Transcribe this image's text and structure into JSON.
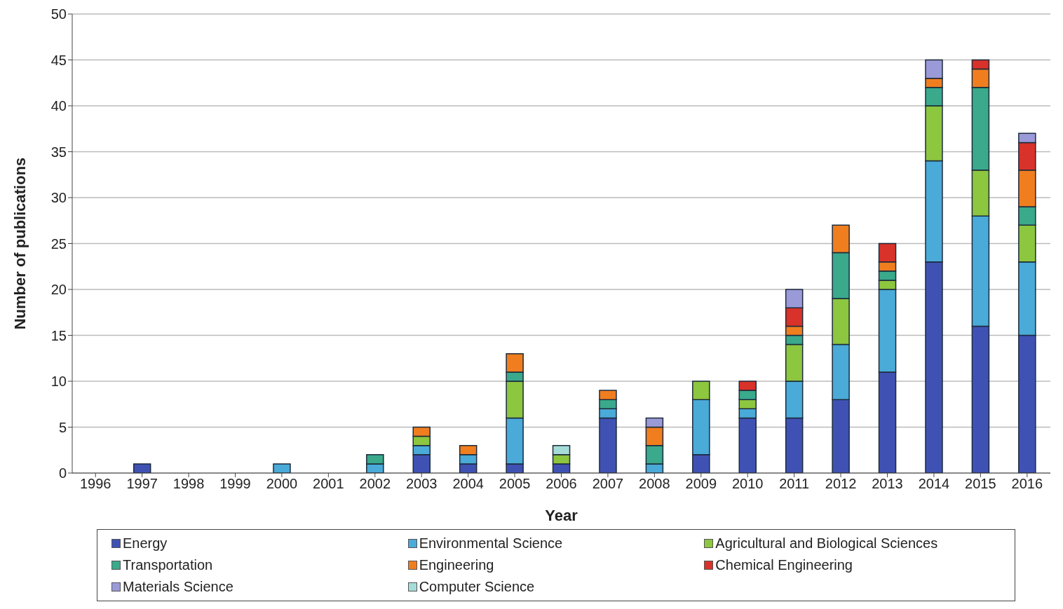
{
  "chart_data": {
    "type": "bar",
    "stacked": true,
    "xlabel": "Year",
    "ylabel": "Number of publications",
    "categories": [
      "1996",
      "1997",
      "1998",
      "1999",
      "2000",
      "2001",
      "2002",
      "2003",
      "2004",
      "2005",
      "2006",
      "2007",
      "2008",
      "2009",
      "2010",
      "2011",
      "2012",
      "2013",
      "2014",
      "2015",
      "2016"
    ],
    "series": [
      {
        "name": "Energy",
        "color": "#3f52b4",
        "values": [
          0,
          1,
          0,
          0,
          0,
          0,
          0,
          2,
          1,
          1,
          1,
          6,
          0,
          2,
          6,
          6,
          8,
          11,
          23,
          16,
          15
        ]
      },
      {
        "name": "Environmental Science",
        "color": "#4aaad8",
        "values": [
          0,
          0,
          0,
          0,
          1,
          0,
          1,
          1,
          1,
          5,
          0,
          1,
          1,
          6,
          1,
          4,
          6,
          9,
          11,
          12,
          8
        ]
      },
      {
        "name": "Agricultural and Biological Sciences",
        "color": "#8dc63f",
        "values": [
          0,
          0,
          0,
          0,
          0,
          0,
          0,
          1,
          0,
          4,
          1,
          0,
          0,
          2,
          1,
          4,
          5,
          1,
          6,
          5,
          4
        ]
      },
      {
        "name": "Transportation",
        "color": "#3aa98c",
        "values": [
          0,
          0,
          0,
          0,
          0,
          0,
          1,
          0,
          0,
          1,
          0,
          1,
          2,
          0,
          1,
          1,
          5,
          1,
          2,
          9,
          2
        ]
      },
      {
        "name": "Engineering",
        "color": "#f07e1f",
        "values": [
          0,
          0,
          0,
          0,
          0,
          0,
          0,
          1,
          1,
          2,
          0,
          1,
          2,
          0,
          0,
          1,
          3,
          1,
          1,
          2,
          4
        ]
      },
      {
        "name": "Chemical Engineering",
        "color": "#d9322a",
        "values": [
          0,
          0,
          0,
          0,
          0,
          0,
          0,
          0,
          0,
          0,
          0,
          0,
          0,
          0,
          1,
          2,
          0,
          2,
          0,
          1,
          3
        ]
      },
      {
        "name": "Materials Science",
        "color": "#9b9ad8",
        "values": [
          0,
          0,
          0,
          0,
          0,
          0,
          0,
          0,
          0,
          0,
          0,
          0,
          1,
          0,
          0,
          2,
          0,
          0,
          2,
          0,
          1
        ]
      },
      {
        "name": "Computer Science",
        "color": "#a6dcd8",
        "values": [
          0,
          0,
          0,
          0,
          0,
          0,
          0,
          0,
          0,
          0,
          1,
          0,
          0,
          0,
          0,
          0,
          0,
          0,
          0,
          0,
          0
        ]
      }
    ],
    "ylim": [
      0,
      50
    ],
    "yticks": [
      0,
      5,
      10,
      15,
      20,
      25,
      30,
      35,
      40,
      45,
      50
    ],
    "grid": "y",
    "legend": "bottom"
  }
}
